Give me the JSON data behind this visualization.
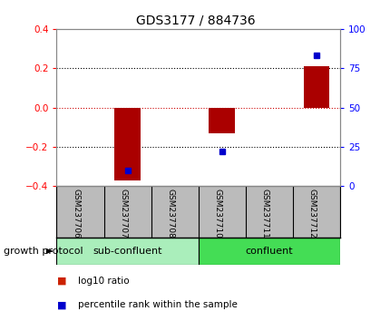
{
  "title": "GDS3177 / 884736",
  "samples": [
    "GSM237706",
    "GSM237707",
    "GSM237708",
    "GSM237710",
    "GSM237711",
    "GSM237712"
  ],
  "log10_ratio": [
    0.0,
    -0.37,
    0.0,
    -0.13,
    0.0,
    0.21
  ],
  "percentile_rank": [
    null,
    10,
    null,
    22,
    null,
    83
  ],
  "ylim": [
    -0.4,
    0.4
  ],
  "ylim_right": [
    0,
    100
  ],
  "yticks_left": [
    -0.4,
    -0.2,
    0.0,
    0.2,
    0.4
  ],
  "yticks_right": [
    0,
    25,
    50,
    75,
    100
  ],
  "bar_color": "#aa0000",
  "dot_color": "#0000cc",
  "zero_line_color": "#cc0000",
  "bg_color": "#ffffff",
  "label_bg_color": "#bbbbbb",
  "groups": [
    {
      "label": "sub-confluent",
      "start": 0,
      "end": 3,
      "color": "#aaeebb"
    },
    {
      "label": "confluent",
      "start": 3,
      "end": 6,
      "color": "#44dd55"
    }
  ],
  "growth_protocol_label": "growth protocol",
  "legend_items": [
    {
      "color": "#cc2200",
      "label": "log10 ratio"
    },
    {
      "color": "#0000cc",
      "label": "percentile rank within the sample"
    }
  ]
}
